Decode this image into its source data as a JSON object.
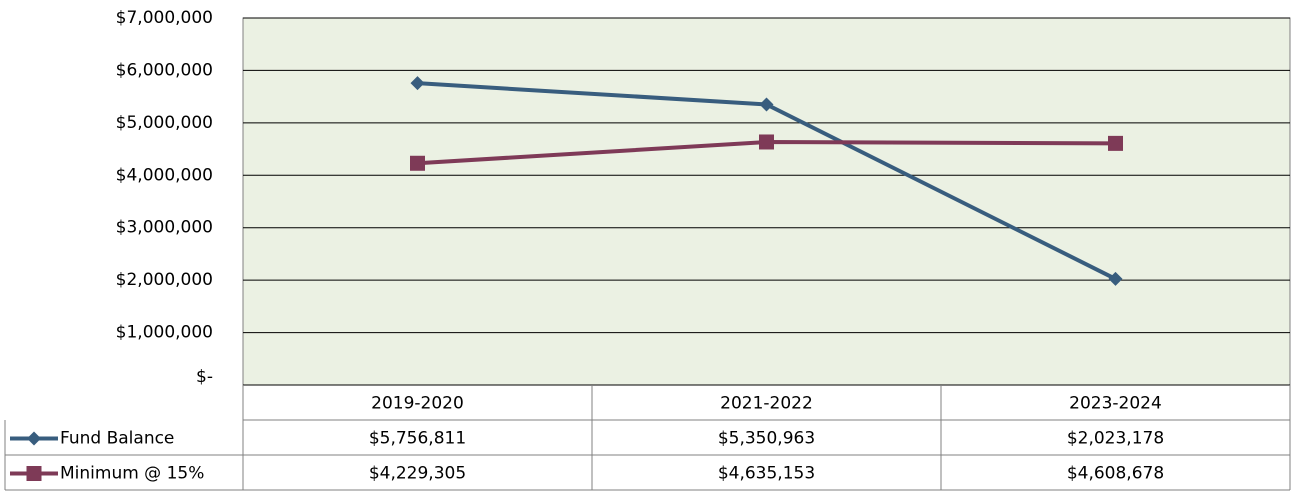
{
  "chart_data": {
    "type": "line",
    "categories": [
      "2019-2020",
      "2021-2022",
      "2023-2024"
    ],
    "series": [
      {
        "name": "Fund Balance",
        "color": "#385d7e",
        "marker": "diamond",
        "values": [
          5756811,
          5350963,
          2023178
        ],
        "value_labels": [
          "$5,756,811",
          "$5,350,963",
          "$2,023,178"
        ]
      },
      {
        "name": "Minimum @ 15%",
        "color": "#7e3a57",
        "marker": "square",
        "values": [
          4229305,
          4635153,
          4608678
        ],
        "value_labels": [
          "$4,229,305",
          "$4,635,153",
          "$4,608,678"
        ]
      }
    ],
    "ylim": [
      0,
      7000000
    ],
    "yticks": [
      {
        "value": 0,
        "label": "$-"
      },
      {
        "value": 1000000,
        "label": "$1,000,000"
      },
      {
        "value": 2000000,
        "label": "$2,000,000"
      },
      {
        "value": 3000000,
        "label": "$3,000,000"
      },
      {
        "value": 4000000,
        "label": "$4,000,000"
      },
      {
        "value": 5000000,
        "label": "$5,000,000"
      },
      {
        "value": 6000000,
        "label": "$6,000,000"
      },
      {
        "value": 7000000,
        "label": "$7,000,000"
      }
    ],
    "grid": true,
    "plot_background": "#ebf1e3",
    "legend": "data-table"
  }
}
